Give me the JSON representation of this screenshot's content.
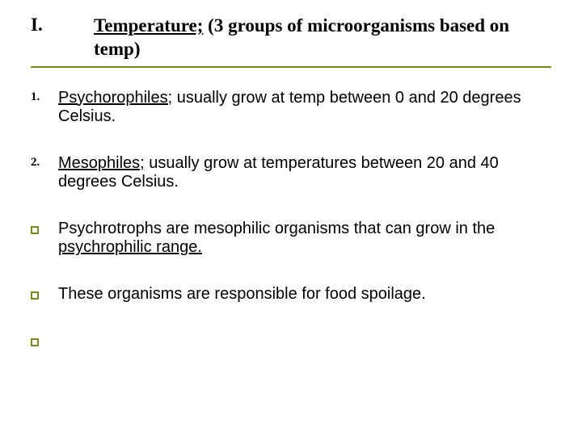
{
  "colors": {
    "accent": "#7a8a1f",
    "text": "#000000",
    "bg": "#ffffff"
  },
  "title": {
    "numeral": "I.",
    "heading_underlined": "Temperature;",
    "heading_rest": " (3 groups of microorganisms based on temp)"
  },
  "items": {
    "0": {
      "marker": "1.",
      "kind": "numbered",
      "lead_underlined": "Psychorophiles;",
      "rest": " usually grow at temp between 0 and 20 degrees Celsius."
    },
    "1": {
      "marker": "2.",
      "kind": "numbered",
      "lead_underlined": "Mesophiles;",
      "rest": " usually grow at temperatures between 20 and 40 degrees Celsius."
    },
    "2": {
      "kind": "bullet",
      "pre": "Psychrotrophs are mesophilic organisms that can grow in the ",
      "mid_underlined": "psychrophilic range.",
      "post": ""
    },
    "3": {
      "kind": "bullet",
      "text": "These organisms are responsible for food spoilage."
    },
    "4": {
      "kind": "bullet"
    }
  },
  "typography": {
    "title_fontsize": 23,
    "body_fontsize": 20,
    "title_family": "Georgia serif",
    "body_family": "Verdana sans-serif"
  }
}
